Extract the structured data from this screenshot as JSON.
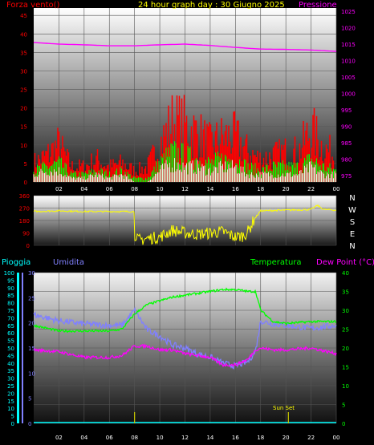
{
  "page": {
    "title": "24 hour graph day : 30 Giugno 2025"
  },
  "colors": {
    "background": "#000000",
    "wind_speed": "#ff0000",
    "wind_gust": "#00ff00",
    "wind_avg": "#ffffff",
    "pressure": "#ff00ff",
    "wind_dir": "#ffff00",
    "rain": "#00ffff",
    "humidity": "#8080ff",
    "temperature": "#00ff00",
    "dew_point": "#ff00ff",
    "sunset": "#cccc00",
    "left_axis_red": "#ff0000",
    "left_axis_cyan": "#00ffff",
    "left_axis_blue": "#8080ff",
    "right_axis_magenta": "#ff00ff",
    "right_axis_green": "#00ff00",
    "compass_text": "#ffffff",
    "tick_text_white": "#ffffff"
  },
  "x_ticks": [
    "02",
    "04",
    "06",
    "08",
    "10",
    "12",
    "14",
    "16",
    "18",
    "20",
    "22",
    "00"
  ],
  "chart_data": [
    {
      "type": "line",
      "name": "wind-pressure",
      "title": "24 hour graph day : 30 Giugno 2025",
      "left_label": "Forza vento()",
      "right_label": "Pressione",
      "left_ticks": [
        "0",
        "5",
        "10",
        "15",
        "20",
        "25",
        "30",
        "35",
        "40",
        "45"
      ],
      "right_ticks": [
        "975",
        "980",
        "985",
        "990",
        "995",
        "1000",
        "1005",
        "1010",
        "1015",
        "1020",
        "1025"
      ],
      "ylim_left": [
        0,
        47
      ],
      "ylim_right": [
        973,
        1026
      ],
      "xlim_hours": [
        0,
        24
      ],
      "series": [
        {
          "name": "Pressione",
          "x": [
            0,
            2,
            4,
            6,
            8,
            10,
            12,
            14,
            16,
            18,
            20,
            22,
            24
          ],
          "values": [
            1015.5,
            1015.0,
            1014.8,
            1014.5,
            1014.5,
            1014.8,
            1015.0,
            1014.6,
            1014.0,
            1013.5,
            1013.4,
            1013.2,
            1012.8
          ]
        },
        {
          "name": "wind-speed",
          "x": [
            0,
            1,
            2,
            3,
            4,
            5,
            6,
            7,
            8,
            9,
            10,
            11,
            12,
            13,
            14,
            15,
            16,
            17,
            18,
            19,
            20,
            21,
            22,
            23,
            24
          ],
          "values": [
            5,
            7,
            10,
            4,
            4,
            6,
            4,
            5,
            3,
            4,
            10,
            16,
            15,
            13,
            10,
            12,
            12,
            8,
            6,
            7,
            8,
            8,
            14,
            9,
            7
          ]
        },
        {
          "name": "wind-gust",
          "x": [
            0,
            1,
            2,
            3,
            4,
            5,
            6,
            7,
            8,
            9,
            10,
            11,
            12,
            13,
            14,
            15,
            16,
            17,
            18,
            19,
            20,
            21,
            22,
            23,
            24
          ],
          "values": [
            3,
            4,
            5,
            2,
            2,
            3,
            2,
            3,
            1,
            1,
            5,
            8,
            7,
            6,
            5,
            6,
            6,
            4,
            3,
            4,
            4,
            4,
            6,
            4,
            3
          ]
        },
        {
          "name": "wind-avg",
          "x": [
            0,
            1,
            2,
            3,
            4,
            5,
            6,
            7,
            8,
            9,
            10,
            11,
            12,
            13,
            14,
            15,
            16,
            17,
            18,
            19,
            20,
            21,
            22,
            23,
            24
          ],
          "values": [
            2,
            3,
            3,
            1,
            1,
            2,
            1,
            2,
            0,
            0,
            3,
            5,
            4,
            4,
            3,
            4,
            4,
            2,
            2,
            2,
            2,
            2,
            4,
            2,
            2
          ]
        }
      ]
    },
    {
      "type": "line",
      "name": "wind-direction",
      "left_ticks": [
        "0",
        "90",
        "180",
        "270",
        "360"
      ],
      "compass_labels": [
        "N",
        "W",
        "S",
        "E",
        "N"
      ],
      "ylim": [
        0,
        360
      ],
      "xlim_hours": [
        0,
        24
      ],
      "series": [
        {
          "name": "direction",
          "x": [
            0,
            2,
            4,
            6,
            7.99,
            8.0,
            8.5,
            9,
            10,
            11,
            12,
            13,
            14,
            15,
            16,
            16.6,
            17,
            17.5,
            18,
            20,
            22,
            22.5,
            23,
            24
          ],
          "values": [
            245,
            250,
            245,
            245,
            245,
            40,
            40,
            50,
            60,
            110,
            90,
            80,
            90,
            100,
            60,
            70,
            100,
            190,
            250,
            255,
            260,
            290,
            260,
            255
          ]
        }
      ]
    },
    {
      "type": "line",
      "name": "humidity-temperature",
      "labels": {
        "rain": "Pioggia",
        "humidity": "Umidita",
        "temperature": "Temperatura",
        "dew_point": "Dew Point (°C)",
        "sunset": "Sun Set"
      },
      "left_ticks_rain": [
        "0",
        "5",
        "10",
        "15",
        "20",
        "25",
        "30",
        "35",
        "40",
        "45",
        "50",
        "55",
        "60",
        "65",
        "70",
        "75",
        "80",
        "85",
        "90",
        "95",
        "100"
      ],
      "left_ticks_humidity": [
        "0",
        "5",
        "10",
        "15",
        "20",
        "25",
        "30"
      ],
      "right_ticks": [
        "0",
        "5",
        "10",
        "15",
        "20",
        "25",
        "30",
        "35",
        "40"
      ],
      "ylim_humidity": [
        0,
        100
      ],
      "ylim_temp": [
        0,
        40
      ],
      "xlim_hours": [
        0,
        24
      ],
      "series": [
        {
          "name": "Umidita",
          "x": [
            0,
            2,
            4,
            6,
            7,
            8,
            9,
            10,
            11,
            12,
            13,
            14,
            15,
            16,
            17,
            17.6,
            18,
            19,
            20,
            22,
            24
          ],
          "values": [
            72,
            68,
            66,
            65,
            65,
            75,
            62,
            58,
            52,
            50,
            46,
            44,
            40,
            38,
            41,
            48,
            68,
            66,
            65,
            63,
            65
          ]
        },
        {
          "name": "Temperatura",
          "x": [
            0,
            2,
            4,
            6,
            7,
            8,
            9,
            10,
            11,
            12,
            13,
            14,
            15,
            16,
            17,
            17.6,
            18,
            19,
            20,
            22,
            24
          ],
          "values": [
            26,
            24.5,
            24.5,
            24.5,
            25,
            29,
            31.5,
            32.5,
            33.5,
            34,
            34.5,
            35,
            35.5,
            35.5,
            35,
            35,
            30,
            27,
            26.5,
            27,
            27
          ]
        },
        {
          "name": "Dew Point",
          "x": [
            0,
            2,
            4,
            6,
            7,
            8,
            9,
            10,
            11,
            12,
            13,
            14,
            15,
            16,
            17,
            17.6,
            18,
            19,
            20,
            22,
            24
          ],
          "values": [
            19.5,
            19,
            17.5,
            17.5,
            18,
            20.5,
            20.5,
            19.5,
            19.5,
            18.5,
            18,
            17.5,
            15.5,
            15.5,
            17,
            19.5,
            20,
            19.5,
            19.5,
            20,
            18.5
          ]
        },
        {
          "name": "Pioggia",
          "x": [
            0,
            24
          ],
          "values": [
            0,
            0
          ]
        }
      ],
      "markers": [
        {
          "name": "noon-marker",
          "x": 8
        },
        {
          "name": "sunset-marker",
          "x": 20.2
        }
      ]
    }
  ]
}
